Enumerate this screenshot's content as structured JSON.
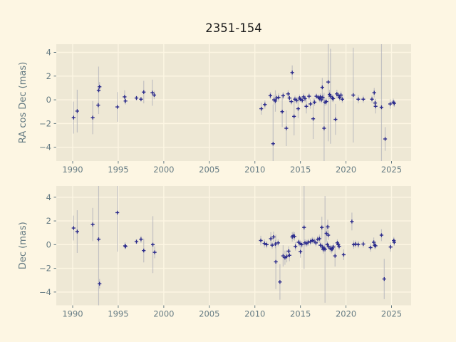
{
  "title": "2351-154",
  "figure": {
    "bg_color": "#fdf6e3",
    "axes_bg_color": "#eee8d5",
    "grid_color": "#fdf6e3",
    "tick_label_color": "#657b83",
    "axis_label_color": "#657b83",
    "title_color": "#1c1c1c",
    "marker_color": "#2b2b8c",
    "errorbar_color": "rgba(158,160,178,0.55)"
  },
  "chart_data": [
    {
      "type": "scatter",
      "panel": "ra-cos-dec",
      "title": "2351-154",
      "xlabel": "",
      "ylabel": "RA cos Dec (mas)",
      "grid": true,
      "legend": "none",
      "marker": "plus",
      "xlim": [
        1988.2,
        2027.15
      ],
      "ylim": [
        -5.16,
        4.69
      ],
      "xticks": {
        "values": [
          1990,
          1995,
          2000,
          2005,
          2010,
          2015,
          2020,
          2025
        ],
        "labels": [
          "1990",
          "1995",
          "2000",
          "2005",
          "2010",
          "2015",
          "2020",
          "2025"
        ]
      },
      "yticks": {
        "values": [
          -4,
          -2,
          0,
          2,
          4
        ],
        "labels": [
          "−4",
          "−2",
          "0",
          "2",
          "4"
        ]
      },
      "points_format": "[year, value_mas, error_mas]",
      "points": [
        [
          1990.1,
          -1.5,
          1.35
        ],
        [
          1990.5,
          -0.95,
          1.8
        ],
        [
          1992.2,
          -1.5,
          1.4
        ],
        [
          1992.8,
          -0.45,
          0.25
        ],
        [
          1992.85,
          0.8,
          2.0
        ],
        [
          1992.95,
          1.1,
          0.4
        ],
        [
          1994.9,
          -0.6,
          1.25
        ],
        [
          1995.7,
          0.25,
          0.55
        ],
        [
          1995.8,
          -0.1,
          0.3
        ],
        [
          1997.0,
          0.15,
          0.2
        ],
        [
          1997.5,
          0.05,
          0.2
        ],
        [
          1997.8,
          0.65,
          0.95
        ],
        [
          1998.75,
          0.6,
          1.1
        ],
        [
          1998.95,
          0.4,
          0.35
        ],
        [
          2010.7,
          -0.75,
          0.5
        ],
        [
          2011.1,
          -0.4,
          0.35
        ],
        [
          2011.7,
          0.35,
          0.3
        ],
        [
          2012.0,
          -3.7,
          3.3
        ],
        [
          2012.1,
          0.0,
          0.4
        ],
        [
          2012.25,
          -0.1,
          0.9
        ],
        [
          2012.4,
          0.15,
          0.3
        ],
        [
          2012.6,
          0.2,
          0.35
        ],
        [
          2013.0,
          -1.0,
          1.3
        ],
        [
          2013.1,
          0.35,
          0.3
        ],
        [
          2013.45,
          -2.4,
          1.5
        ],
        [
          2013.65,
          0.5,
          0.3
        ],
        [
          2013.8,
          0.15,
          0.3
        ],
        [
          2014.0,
          -0.15,
          0.3
        ],
        [
          2014.1,
          2.3,
          0.6
        ],
        [
          2014.3,
          -1.4,
          1.6
        ],
        [
          2014.4,
          0.05,
          0.3
        ],
        [
          2014.6,
          -0.05,
          0.3
        ],
        [
          2014.75,
          -0.75,
          0.8
        ],
        [
          2014.9,
          0.15,
          0.3
        ],
        [
          2015.0,
          0.05,
          0.25
        ],
        [
          2015.2,
          -0.05,
          0.25
        ],
        [
          2015.35,
          0.25,
          0.3
        ],
        [
          2015.5,
          0.1,
          0.3
        ],
        [
          2015.65,
          -0.55,
          0.6
        ],
        [
          2015.95,
          0.3,
          0.3
        ],
        [
          2016.1,
          -0.35,
          0.4
        ],
        [
          2016.4,
          -1.6,
          1.7
        ],
        [
          2016.55,
          -0.2,
          0.3
        ],
        [
          2016.75,
          0.3,
          0.25
        ],
        [
          2016.95,
          0.2,
          0.25
        ],
        [
          2017.1,
          0.1,
          0.3
        ],
        [
          2017.2,
          0.25,
          0.3
        ],
        [
          2017.3,
          0.0,
          0.3
        ],
        [
          2017.4,
          1.05,
          0.8
        ],
        [
          2017.45,
          0.2,
          0.3
        ],
        [
          2017.6,
          -2.4,
          3.0
        ],
        [
          2017.7,
          -0.2,
          0.3
        ],
        [
          2017.85,
          -0.15,
          0.3
        ],
        [
          2018.05,
          1.5,
          5.0
        ],
        [
          2018.2,
          0.45,
          0.4
        ],
        [
          2018.3,
          0.3,
          4.0
        ],
        [
          2018.5,
          0.15,
          0.3
        ],
        [
          2018.6,
          0.1,
          0.3
        ],
        [
          2018.85,
          -1.65,
          1.3
        ],
        [
          2019.0,
          0.5,
          0.35
        ],
        [
          2019.15,
          0.35,
          0.3
        ],
        [
          2019.3,
          0.2,
          0.3
        ],
        [
          2019.45,
          0.4,
          0.3
        ],
        [
          2019.6,
          0.05,
          0.3
        ],
        [
          2020.8,
          0.4,
          4.0
        ],
        [
          2021.35,
          0.05,
          0.35
        ],
        [
          2021.9,
          0.05,
          0.3
        ],
        [
          2022.85,
          0.05,
          0.3
        ],
        [
          2023.1,
          0.6,
          0.4
        ],
        [
          2023.2,
          -0.27,
          0.35
        ],
        [
          2023.25,
          -0.55,
          0.6
        ],
        [
          2023.9,
          -0.63,
          5.5
        ],
        [
          2024.3,
          -3.3,
          1.0
        ],
        [
          2024.85,
          -0.35,
          0.4
        ],
        [
          2025.2,
          -0.2,
          0.3
        ],
        [
          2025.3,
          -0.3,
          0.3
        ]
      ]
    },
    {
      "type": "scatter",
      "panel": "dec",
      "title": "",
      "xlabel": "",
      "ylabel": "Dec (mas)",
      "grid": true,
      "legend": "none",
      "marker": "plus",
      "xlim": [
        1988.2,
        2027.15
      ],
      "ylim": [
        -5.12,
        4.95
      ],
      "xticks": {
        "values": [
          1990,
          1995,
          2000,
          2005,
          2010,
          2015,
          2020,
          2025
        ],
        "labels": [
          "1990",
          "1995",
          "2000",
          "2005",
          "2010",
          "2015",
          "2020",
          "2025"
        ]
      },
      "yticks": {
        "values": [
          -4,
          -2,
          0,
          2,
          4
        ],
        "labels": [
          "−4",
          "−2",
          "0",
          "2",
          "4"
        ]
      },
      "points_format": "[year, value_mas, error_mas]",
      "points": [
        [
          1990.1,
          1.4,
          1.05
        ],
        [
          1990.5,
          1.1,
          1.8
        ],
        [
          1992.2,
          1.7,
          1.4
        ],
        [
          1992.85,
          0.45,
          8.0
        ],
        [
          1992.95,
          -3.3,
          0.4
        ],
        [
          1994.9,
          2.7,
          3.3
        ],
        [
          1995.75,
          -0.1,
          0.3
        ],
        [
          1995.8,
          -0.15,
          0.2
        ],
        [
          1997.0,
          0.25,
          0.2
        ],
        [
          1997.5,
          0.45,
          0.3
        ],
        [
          1997.8,
          -0.5,
          1.0
        ],
        [
          1998.8,
          0.0,
          2.4
        ],
        [
          1999.0,
          -0.65,
          0.5
        ],
        [
          2010.65,
          0.35,
          0.4
        ],
        [
          2011.05,
          0.1,
          0.35
        ],
        [
          2011.3,
          0.0,
          0.3
        ],
        [
          2011.75,
          0.5,
          0.55
        ],
        [
          2011.9,
          -0.05,
          0.3
        ],
        [
          2012.05,
          0.65,
          0.45
        ],
        [
          2012.25,
          0.05,
          0.35
        ],
        [
          2012.3,
          -1.45,
          2.3
        ],
        [
          2012.55,
          0.15,
          0.3
        ],
        [
          2012.75,
          -3.15,
          1.5
        ],
        [
          2013.1,
          -0.95,
          0.9
        ],
        [
          2013.3,
          -1.1,
          0.6
        ],
        [
          2013.5,
          -1.0,
          0.5
        ],
        [
          2013.7,
          -0.55,
          0.4
        ],
        [
          2013.8,
          -0.9,
          0.5
        ],
        [
          2014.1,
          0.65,
          0.4
        ],
        [
          2014.2,
          0.75,
          0.35
        ],
        [
          2014.35,
          0.7,
          0.35
        ],
        [
          2014.45,
          -0.15,
          0.35
        ],
        [
          2014.8,
          0.2,
          0.3
        ],
        [
          2014.95,
          0.1,
          0.3
        ],
        [
          2015.0,
          -0.6,
          0.5
        ],
        [
          2015.15,
          0.0,
          0.3
        ],
        [
          2015.4,
          1.45,
          3.5
        ],
        [
          2015.5,
          0.15,
          0.3
        ],
        [
          2015.7,
          0.1,
          0.3
        ],
        [
          2015.85,
          0.2,
          0.3
        ],
        [
          2016.1,
          0.25,
          0.3
        ],
        [
          2016.3,
          0.35,
          0.3
        ],
        [
          2016.5,
          0.3,
          0.3
        ],
        [
          2016.7,
          0.15,
          0.3
        ],
        [
          2016.9,
          0.45,
          0.3
        ],
        [
          2017.1,
          0.5,
          0.35
        ],
        [
          2017.2,
          -0.05,
          0.3
        ],
        [
          2017.35,
          1.45,
          0.9
        ],
        [
          2017.4,
          -0.2,
          0.3
        ],
        [
          2017.5,
          -0.4,
          0.35
        ],
        [
          2017.6,
          -0.3,
          0.3
        ],
        [
          2017.7,
          -0.4,
          4.5
        ],
        [
          2017.85,
          0.95,
          0.7
        ],
        [
          2017.95,
          0.0,
          0.3
        ],
        [
          2018.0,
          1.5,
          0.6
        ],
        [
          2018.05,
          0.8,
          0.4
        ],
        [
          2018.1,
          -0.15,
          0.3
        ],
        [
          2018.25,
          -0.3,
          0.3
        ],
        [
          2018.4,
          -0.4,
          0.35
        ],
        [
          2018.5,
          -0.35,
          0.3
        ],
        [
          2018.6,
          -0.2,
          0.3
        ],
        [
          2018.8,
          -0.95,
          0.9
        ],
        [
          2019.05,
          0.15,
          0.3
        ],
        [
          2019.15,
          0.0,
          0.3
        ],
        [
          2019.25,
          -0.15,
          0.3
        ],
        [
          2019.75,
          -0.85,
          0.45
        ],
        [
          2020.65,
          1.95,
          0.75
        ],
        [
          2020.85,
          0.0,
          0.35
        ],
        [
          2021.05,
          0.05,
          0.3
        ],
        [
          2021.35,
          0.0,
          0.3
        ],
        [
          2021.9,
          0.05,
          0.3
        ],
        [
          2022.7,
          -0.25,
          0.35
        ],
        [
          2023.05,
          0.2,
          0.4
        ],
        [
          2023.15,
          -0.05,
          0.3
        ],
        [
          2023.25,
          -0.1,
          0.3
        ],
        [
          2023.9,
          0.8,
          0.5
        ],
        [
          2024.2,
          -2.9,
          1.7
        ],
        [
          2024.9,
          -0.2,
          0.4
        ],
        [
          2025.25,
          0.35,
          0.3
        ],
        [
          2025.3,
          0.2,
          0.3
        ]
      ]
    }
  ]
}
